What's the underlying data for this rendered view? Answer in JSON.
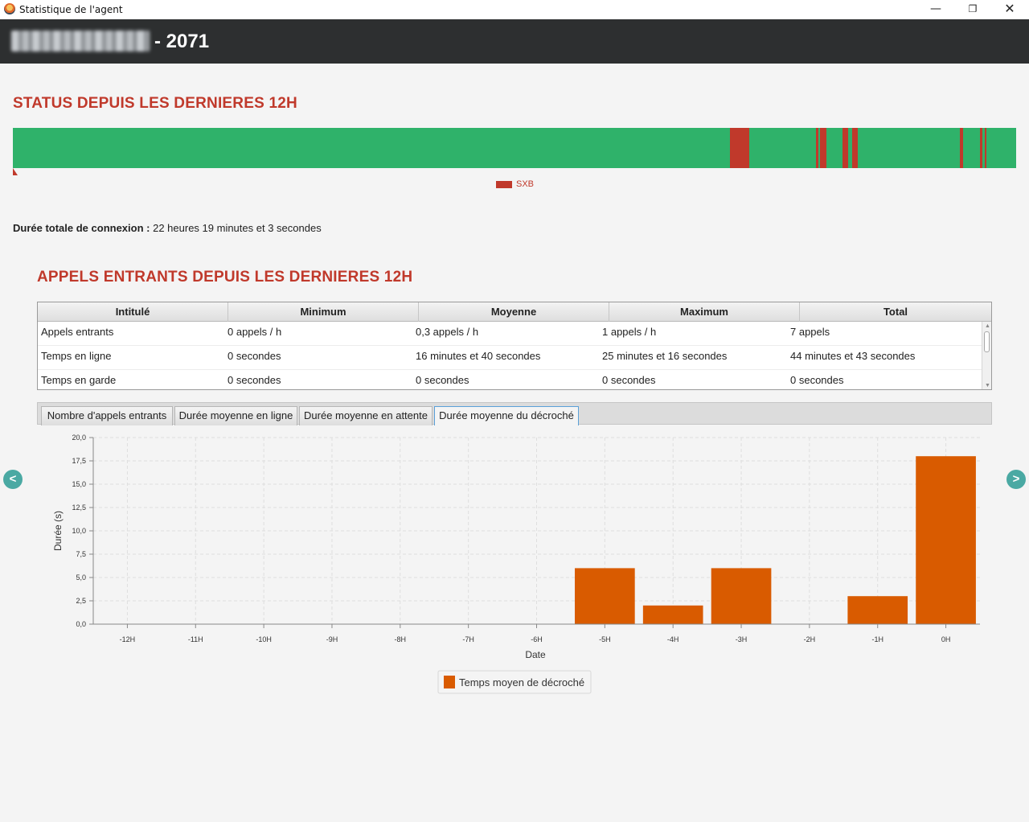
{
  "window": {
    "title": "Statistique de l'agent",
    "minimize": "—",
    "maximize": "❐",
    "close": "✕"
  },
  "header": {
    "agent_id": "- 2071"
  },
  "status": {
    "title": "STATUS DEPUIS LES DERNIERES 12H",
    "legend_label": "SXB",
    "colors": {
      "available": "#2fb26a",
      "busy": "#c0392b"
    },
    "busy_segments": [
      {
        "start": 0.7147,
        "end": 0.734
      },
      {
        "start": 0.8005,
        "end": 0.803
      },
      {
        "start": 0.8045,
        "end": 0.8105
      },
      {
        "start": 0.827,
        "end": 0.8325
      },
      {
        "start": 0.8365,
        "end": 0.8425
      },
      {
        "start": 0.944,
        "end": 0.947
      },
      {
        "start": 0.964,
        "end": 0.966
      },
      {
        "start": 0.9685,
        "end": 0.9705
      }
    ]
  },
  "connexion": {
    "label": "Durée totale de connexion :",
    "value": "22 heures 19 minutes et 3 secondes"
  },
  "calls": {
    "title": "APPELS ENTRANTS DEPUIS LES DERNIERES 12H",
    "columns": [
      "Intitulé",
      "Minimum",
      "Moyenne",
      "Maximum",
      "Total"
    ],
    "rows": [
      [
        "Appels entrants",
        "0 appels / h",
        "0,3 appels / h",
        "1 appels / h",
        "7 appels"
      ],
      [
        "Temps en ligne",
        "0 secondes",
        "16 minutes et 40 secondes",
        "25 minutes et 16 secondes",
        "44 minutes et 43 secondes"
      ],
      [
        "Temps en garde",
        "0 secondes",
        "0 secondes",
        "0 secondes",
        "0 secondes"
      ]
    ]
  },
  "tabs": [
    {
      "label": "Nombre d'appels entrants",
      "active": false
    },
    {
      "label": "Durée moyenne en ligne",
      "active": false
    },
    {
      "label": "Durée moyenne en attente",
      "active": false
    },
    {
      "label": "Durée moyenne du décroché",
      "active": true
    }
  ],
  "nav": {
    "prev": "<",
    "next": ">"
  },
  "chart_data": {
    "type": "bar",
    "categories": [
      "-12H",
      "-11H",
      "-10H",
      "-9H",
      "-8H",
      "-7H",
      "-6H",
      "-5H",
      "-4H",
      "-3H",
      "-2H",
      "-1H",
      "0H"
    ],
    "series": [
      {
        "name": "Temps moyen de décroché",
        "values": [
          0,
          0,
          0,
          0,
          0,
          0,
          0,
          6,
          2,
          6,
          0,
          3,
          18
        ]
      }
    ],
    "xlabel": "Date",
    "ylabel": "Durée (s)",
    "ylim": [
      0,
      20
    ],
    "yticks": [
      "0,0",
      "2,5",
      "5,0",
      "7,5",
      "10,0",
      "12,5",
      "15,0",
      "17,5",
      "20,0"
    ],
    "grid": true,
    "legend": "bottom-center",
    "bar_color": "#d95b00"
  }
}
